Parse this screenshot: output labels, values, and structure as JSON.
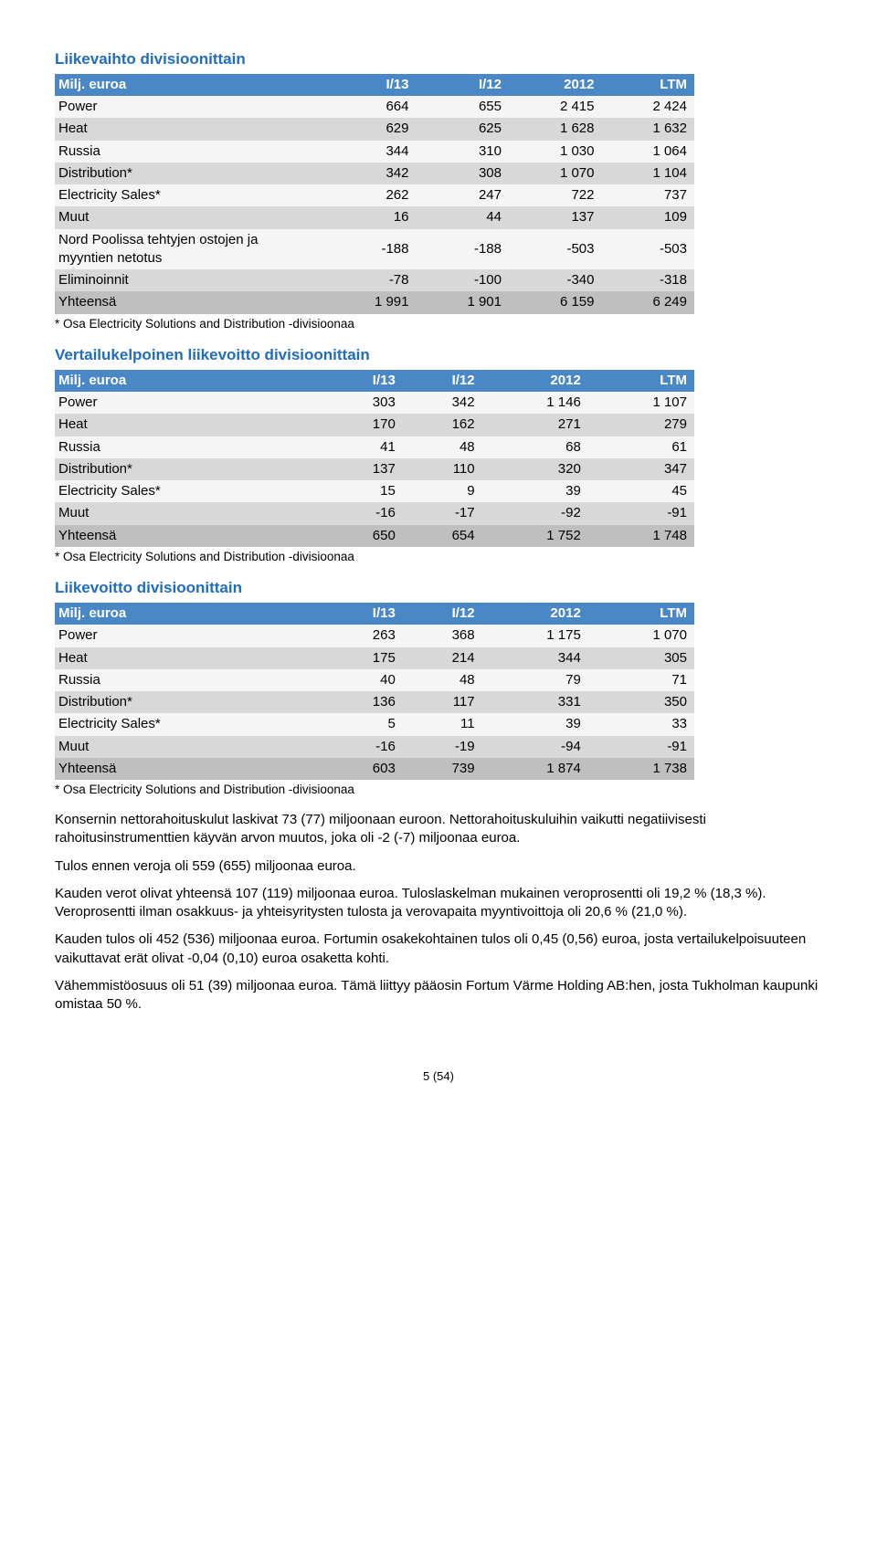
{
  "colors": {
    "title": "#1f6cc0",
    "header_bg": "#4a87c7",
    "header_fg": "#ffffff",
    "row_light": "#f5f5f5",
    "row_dark": "#d8d8d8",
    "row_total": "#bfbfbf"
  },
  "tables": [
    {
      "title": "Liikevaihto divisioonittain",
      "columns": [
        "Milj. euroa",
        "I/13",
        "I/12",
        "2012",
        "LTM"
      ],
      "rows": [
        {
          "label": "Power",
          "vals": [
            "664",
            "655",
            "2 415",
            "2 424"
          ],
          "shade": "light"
        },
        {
          "label": "Heat",
          "vals": [
            "629",
            "625",
            "1 628",
            "1 632"
          ],
          "shade": "dark"
        },
        {
          "label": "Russia",
          "vals": [
            "344",
            "310",
            "1 030",
            "1 064"
          ],
          "shade": "light"
        },
        {
          "label": "Distribution*",
          "vals": [
            "342",
            "308",
            "1 070",
            "1 104"
          ],
          "shade": "dark"
        },
        {
          "label": "Electricity Sales*",
          "vals": [
            "262",
            "247",
            "722",
            "737"
          ],
          "shade": "light"
        },
        {
          "label": "Muut",
          "vals": [
            "16",
            "44",
            "137",
            "109"
          ],
          "shade": "dark"
        },
        {
          "label": "Nord Poolissa tehtyjen ostojen ja myyntien netotus",
          "vals": [
            "-188",
            "-188",
            "-503",
            "-503"
          ],
          "shade": "light"
        },
        {
          "label": "Eliminoinnit",
          "vals": [
            "-78",
            "-100",
            "-340",
            "-318"
          ],
          "shade": "dark"
        },
        {
          "label": "Yhteensä",
          "vals": [
            "1 991",
            "1 901",
            "6 159",
            "6 249"
          ],
          "shade": "total"
        }
      ],
      "footnote": "* Osa Electricity Solutions and Distribution -divisioonaa"
    },
    {
      "title": "Vertailukelpoinen liikevoitto divisioonittain",
      "columns": [
        "Milj. euroa",
        "I/13",
        "I/12",
        "2012",
        "LTM"
      ],
      "rows": [
        {
          "label": "Power",
          "vals": [
            "303",
            "342",
            "1 146",
            "1 107"
          ],
          "shade": "light"
        },
        {
          "label": "Heat",
          "vals": [
            "170",
            "162",
            "271",
            "279"
          ],
          "shade": "dark"
        },
        {
          "label": "Russia",
          "vals": [
            "41",
            "48",
            "68",
            "61"
          ],
          "shade": "light"
        },
        {
          "label": "Distribution*",
          "vals": [
            "137",
            "110",
            "320",
            "347"
          ],
          "shade": "dark"
        },
        {
          "label": "Electricity Sales*",
          "vals": [
            "15",
            "9",
            "39",
            "45"
          ],
          "shade": "light"
        },
        {
          "label": "Muut",
          "vals": [
            "-16",
            "-17",
            "-92",
            "-91"
          ],
          "shade": "dark"
        },
        {
          "label": "Yhteensä",
          "vals": [
            "650",
            "654",
            "1 752",
            "1 748"
          ],
          "shade": "total"
        }
      ],
      "footnote": "* Osa Electricity Solutions and Distribution -divisioonaa"
    },
    {
      "title": "Liikevoitto divisioonittain",
      "columns": [
        "Milj. euroa",
        "I/13",
        "I/12",
        "2012",
        "LTM"
      ],
      "rows": [
        {
          "label": "Power",
          "vals": [
            "263",
            "368",
            "1 175",
            "1 070"
          ],
          "shade": "light"
        },
        {
          "label": "Heat",
          "vals": [
            "175",
            "214",
            "344",
            "305"
          ],
          "shade": "dark"
        },
        {
          "label": "Russia",
          "vals": [
            "40",
            "48",
            "79",
            "71"
          ],
          "shade": "light"
        },
        {
          "label": "Distribution*",
          "vals": [
            "136",
            "117",
            "331",
            "350"
          ],
          "shade": "dark"
        },
        {
          "label": "Electricity Sales*",
          "vals": [
            "5",
            "11",
            "39",
            "33"
          ],
          "shade": "light"
        },
        {
          "label": "Muut",
          "vals": [
            "-16",
            "-19",
            "-94",
            "-91"
          ],
          "shade": "dark"
        },
        {
          "label": "Yhteensä",
          "vals": [
            "603",
            "739",
            "1 874",
            "1 738"
          ],
          "shade": "total"
        }
      ],
      "footnote": "* Osa Electricity Solutions and Distribution -divisioonaa"
    }
  ],
  "paragraphs": [
    "Konsernin nettorahoituskulut laskivat 73 (77) miljoonaan euroon. Nettorahoituskuluihin vaikutti negatiivisesti rahoitusinstrumenttien käyvän arvon muutos, joka oli -2 (-7) miljoonaa euroa.",
    "Tulos ennen veroja oli 559 (655) miljoonaa euroa.",
    "Kauden verot olivat yhteensä 107 (119) miljoonaa euroa. Tuloslaskelman mukainen veroprosentti oli 19,2 % (18,3 %). Veroprosentti ilman osakkuus- ja yhteisyritysten tulosta ja verovapaita myyntivoittoja oli 20,6 % (21,0 %).",
    "Kauden tulos oli 452 (536) miljoonaa euroa. Fortumin osakekohtainen tulos oli 0,45 (0,56) euroa, josta vertailukelpoisuuteen vaikuttavat erät olivat -0,04 (0,10) euroa osaketta kohti.",
    "Vähemmistöosuus oli 51 (39) miljoonaa euroa. Tämä liittyy pääosin Fortum Värme Holding AB:hen, josta Tukholman kaupunki omistaa 50 %."
  ],
  "page_number": "5 (54)"
}
